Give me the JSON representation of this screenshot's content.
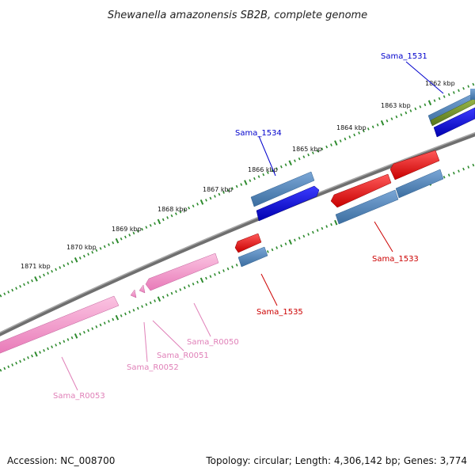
{
  "title": "Shewanella amazonensis SB2B, complete genome",
  "scale_labels": [
    "1862 kbp",
    "1863 kbp",
    "1864 kbp",
    "1865 kbp",
    "1866 kbp",
    "1867 kbp",
    "1868 kbp",
    "1869 kbp",
    "1870 kbp",
    "1871 kbp"
  ],
  "gene_labels": {
    "sama_1531": "Sama_1531",
    "sama_1534": "Sama_1534",
    "sama_1533": "Sama_1533",
    "sama_1535": "Sama_1535",
    "sama_r0050": "Sama_R0050",
    "sama_r0051": "Sama_R0051",
    "sama_r0052": "Sama_R0052",
    "sama_r0053": "Sama_R0053"
  },
  "footer": {
    "accession": "Accession: NC_008700",
    "summary": "Topology: circular; Length: 4,306,142 bp; Genes: 3,774"
  },
  "colors": {
    "backbone": "#808080",
    "tick": "#2e8b2e",
    "cds_forward": "#0000ee",
    "cds_reverse": "#ee0000",
    "gene_feature": "#4a82b4",
    "rna_feature": "#f7a1cd",
    "misc_feature": "#6b8e23",
    "label_blue": "#0000cc",
    "label_red": "#cc0000",
    "label_pink": "#e080b8"
  }
}
